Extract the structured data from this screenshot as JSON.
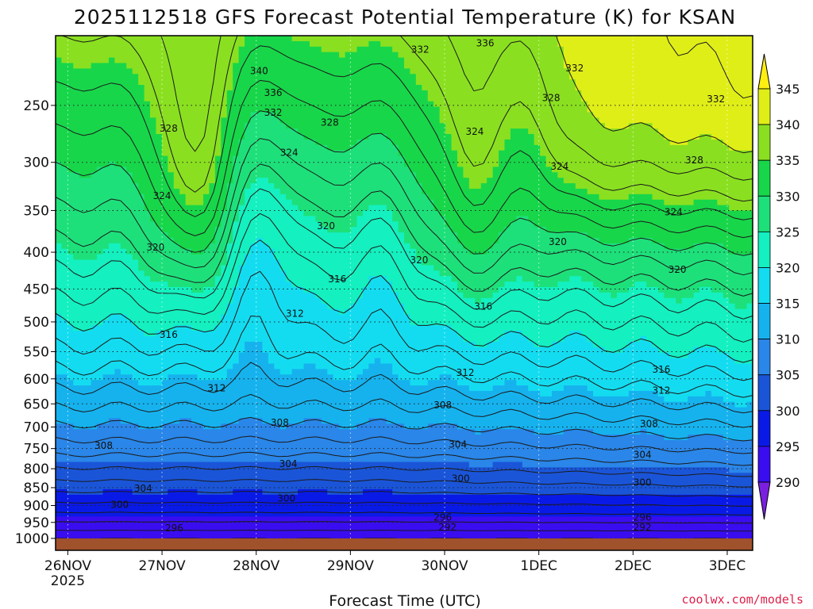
{
  "chart_data": {
    "type": "heatmap",
    "title": "2025112518 GFS Forecast Potential Temperature (K) for KSAN",
    "xlabel": "Forecast Time (UTC)",
    "credit": "coolwx.com/models",
    "x_ticks": [
      {
        "label": "26NOV",
        "year": "2025",
        "day": 0
      },
      {
        "label": "27NOV",
        "day": 1
      },
      {
        "label": "28NOV",
        "day": 2
      },
      {
        "label": "29NOV",
        "day": 3
      },
      {
        "label": "30NOV",
        "day": 4
      },
      {
        "label": "1DEC",
        "day": 5
      },
      {
        "label": "2DEC",
        "day": 6
      },
      {
        "label": "3DEC",
        "day": 7
      }
    ],
    "xlim_days": [
      -0.13,
      7.27
    ],
    "y_ticks_hpa": [
      "250",
      "300",
      "350",
      "400",
      "450",
      "500",
      "550",
      "600",
      "650",
      "700",
      "750",
      "800",
      "850",
      "900",
      "950",
      "1000"
    ],
    "ylim_hpa": [
      200,
      1000
    ],
    "y_scale": "log-pressure",
    "colorbar": {
      "levels": [
        "290",
        "295",
        "300",
        "305",
        "310",
        "315",
        "320",
        "325",
        "330",
        "335",
        "340",
        "345"
      ],
      "colors": [
        "#7a1fe0",
        "#3a0df0",
        "#0a1ae6",
        "#1a55d8",
        "#2a86e8",
        "#16b2ee",
        "#14dcf0",
        "#14f0c0",
        "#1ee07a",
        "#18d64a",
        "#8ae020",
        "#e0ee18",
        "#ffee10"
      ]
    },
    "contour_labels": [
      {
        "t": "292",
        "day": 4.03,
        "hpa": 965
      },
      {
        "t": "292",
        "day": 6.1,
        "hpa": 965
      },
      {
        "t": "296",
        "day": 1.13,
        "hpa": 967
      },
      {
        "t": "296",
        "day": 3.98,
        "hpa": 935
      },
      {
        "t": "296",
        "day": 6.1,
        "hpa": 935
      },
      {
        "t": "300",
        "day": 0.55,
        "hpa": 898
      },
      {
        "t": "300",
        "day": 2.32,
        "hpa": 880
      },
      {
        "t": "300",
        "day": 4.17,
        "hpa": 826
      },
      {
        "t": "300",
        "day": 6.1,
        "hpa": 836
      },
      {
        "t": "304",
        "day": 0.8,
        "hpa": 852
      },
      {
        "t": "304",
        "day": 2.34,
        "hpa": 788
      },
      {
        "t": "304",
        "day": 4.14,
        "hpa": 740
      },
      {
        "t": "304",
        "day": 6.1,
        "hpa": 765
      },
      {
        "t": "308",
        "day": 0.38,
        "hpa": 743
      },
      {
        "t": "308",
        "day": 2.25,
        "hpa": 690
      },
      {
        "t": "308",
        "day": 3.98,
        "hpa": 653
      },
      {
        "t": "308",
        "day": 6.17,
        "hpa": 693
      },
      {
        "t": "312",
        "day": 1.58,
        "hpa": 618
      },
      {
        "t": "312",
        "day": 2.41,
        "hpa": 487
      },
      {
        "t": "312",
        "day": 4.22,
        "hpa": 588
      },
      {
        "t": "312",
        "day": 6.3,
        "hpa": 623
      },
      {
        "t": "316",
        "day": 1.07,
        "hpa": 521
      },
      {
        "t": "316",
        "day": 2.86,
        "hpa": 436
      },
      {
        "t": "316",
        "day": 4.41,
        "hpa": 476
      },
      {
        "t": "316",
        "day": 6.3,
        "hpa": 582
      },
      {
        "t": "320",
        "day": 0.93,
        "hpa": 394
      },
      {
        "t": "320",
        "day": 2.74,
        "hpa": 368
      },
      {
        "t": "320",
        "day": 3.73,
        "hpa": 410
      },
      {
        "t": "320",
        "day": 5.2,
        "hpa": 387
      },
      {
        "t": "320",
        "day": 6.47,
        "hpa": 423
      },
      {
        "t": "324",
        "day": 1.0,
        "hpa": 334
      },
      {
        "t": "324",
        "day": 2.35,
        "hpa": 291
      },
      {
        "t": "324",
        "day": 4.32,
        "hpa": 272
      },
      {
        "t": "324",
        "day": 5.22,
        "hpa": 304
      },
      {
        "t": "324",
        "day": 6.43,
        "hpa": 352
      },
      {
        "t": "328",
        "day": 1.07,
        "hpa": 269
      },
      {
        "t": "328",
        "day": 2.78,
        "hpa": 264
      },
      {
        "t": "328",
        "day": 5.13,
        "hpa": 244
      },
      {
        "t": "328",
        "day": 6.65,
        "hpa": 298
      },
      {
        "t": "332",
        "day": 2.18,
        "hpa": 256
      },
      {
        "t": "332",
        "day": 3.74,
        "hpa": 209
      },
      {
        "t": "332",
        "day": 5.38,
        "hpa": 222
      },
      {
        "t": "332",
        "day": 6.88,
        "hpa": 245
      },
      {
        "t": "336",
        "day": 2.18,
        "hpa": 240
      },
      {
        "t": "336",
        "day": 4.43,
        "hpa": 205
      },
      {
        "t": "340",
        "day": 2.03,
        "hpa": 224
      }
    ]
  }
}
